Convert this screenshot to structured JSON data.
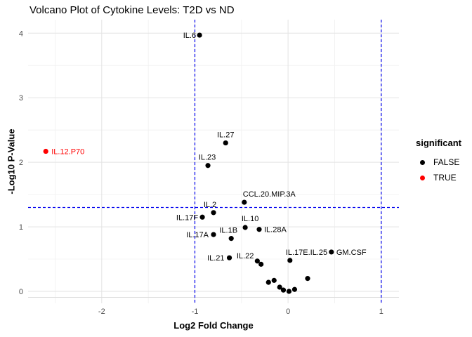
{
  "legend": {
    "title": "significant",
    "items": [
      {
        "label": "FALSE",
        "color": "#000000"
      },
      {
        "label": "TRUE",
        "color": "#FF0000"
      }
    ]
  },
  "chart_data": {
    "type": "scatter",
    "title": "Volcano Plot of Cytokine Levels: T2D vs ND",
    "xlabel": "Log2 Fold Change",
    "ylabel": "-Log10 P-Value",
    "xlim": [
      -2.79,
      1.19
    ],
    "ylim": [
      -0.185,
      4.21
    ],
    "x_ticks": [
      -2,
      -1,
      0,
      1
    ],
    "y_ticks": [
      0,
      1,
      2,
      3,
      4
    ],
    "grid": true,
    "legend_position": "right",
    "tick_label_color": "#4d4d4d",
    "threshold_lines": {
      "horizontal_y": 1.3,
      "vertical_x": [
        -1,
        1
      ],
      "color": "#0000EE",
      "style": "dashed"
    },
    "series": [
      {
        "name": "FALSE",
        "color": "#000000",
        "points": [
          {
            "label": "IL.6",
            "x": -0.95,
            "y": 3.97,
            "lanchor": "end",
            "ldx": -5,
            "ldy": 4
          },
          {
            "label": "IL.27",
            "x": -0.67,
            "y": 2.3,
            "lanchor": "middle",
            "ldx": 0,
            "ldy": -8
          },
          {
            "label": "IL.23",
            "x": -0.86,
            "y": 1.95,
            "lanchor": "middle",
            "ldx": -1,
            "ldy": -8
          },
          {
            "label": "CCL.20.MIP.3A",
            "x": -0.47,
            "y": 1.38,
            "lanchor": "start",
            "ldx": -2,
            "ldy": -8
          },
          {
            "label": "IL.2",
            "x": -0.8,
            "y": 1.22,
            "lanchor": "middle",
            "ldx": -5,
            "ldy": -8
          },
          {
            "label": "IL.17F",
            "x": -0.92,
            "y": 1.15,
            "lanchor": "end",
            "ldx": -6,
            "ldy": 4
          },
          {
            "label": "IL.10",
            "x": -0.46,
            "y": 0.99,
            "lanchor": "middle",
            "ldx": 7,
            "ldy": -9
          },
          {
            "label": "IL.28A",
            "x": -0.31,
            "y": 0.96,
            "lanchor": "start",
            "ldx": 7,
            "ldy": 4
          },
          {
            "label": "IL.17A",
            "x": -0.8,
            "y": 0.88,
            "lanchor": "end",
            "ldx": -7,
            "ldy": 4
          },
          {
            "label": "IL.1B",
            "x": -0.61,
            "y": 0.82,
            "lanchor": "middle",
            "ldx": -4,
            "ldy": -8
          },
          {
            "label": "IL.21",
            "x": -0.63,
            "y": 0.52,
            "lanchor": "end",
            "ldx": -7,
            "ldy": 4
          },
          {
            "label": "IL.22",
            "x": -0.33,
            "y": 0.47,
            "lanchor": "end",
            "ldx": -5,
            "ldy": -4
          },
          {
            "label": "",
            "x": -0.29,
            "y": 0.42
          },
          {
            "label": "IL.17E.IL.25",
            "x": 0.02,
            "y": 0.48,
            "lanchor": "start",
            "ldx": -6,
            "ldy": -8
          },
          {
            "label": "GM.CSF",
            "x": 0.465,
            "y": 0.61,
            "lanchor": "start",
            "ldx": 7,
            "ldy": 4
          },
          {
            "label": "",
            "x": -0.21,
            "y": 0.14
          },
          {
            "label": "",
            "x": -0.15,
            "y": 0.17
          },
          {
            "label": "",
            "x": -0.09,
            "y": 0.065
          },
          {
            "label": "",
            "x": -0.05,
            "y": 0.02
          },
          {
            "label": "",
            "x": 0.01,
            "y": 0.0
          },
          {
            "label": "",
            "x": 0.07,
            "y": 0.03
          },
          {
            "label": "",
            "x": 0.21,
            "y": 0.2
          }
        ]
      },
      {
        "name": "TRUE",
        "color": "#FF0000",
        "points": [
          {
            "label": "IL.12.P70",
            "x": -2.6,
            "y": 2.17,
            "lanchor": "start",
            "ldx": 8,
            "ldy": 4,
            "label_color": "#FF0000"
          }
        ]
      }
    ]
  }
}
